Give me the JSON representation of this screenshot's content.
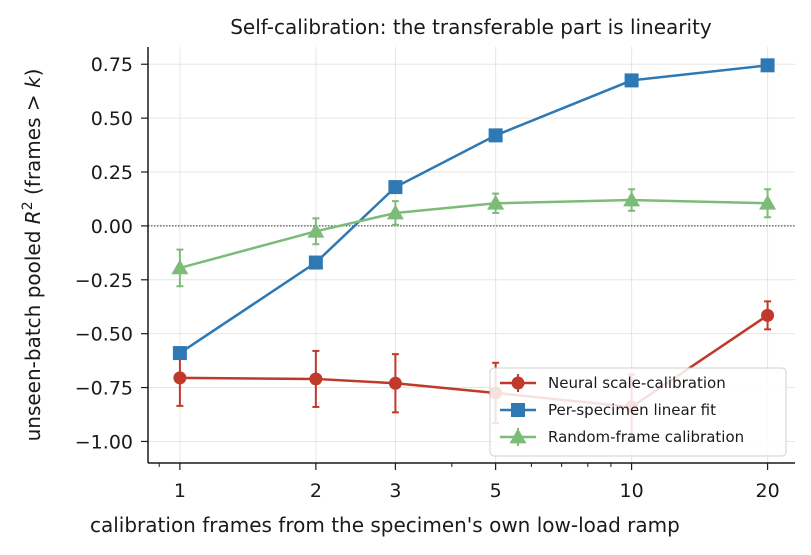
{
  "chart_data": {
    "type": "line",
    "title": "Self-calibration: the transferable part is linearity",
    "xlabel": "calibration frames from the specimen's own low-load ramp",
    "ylabel_prefix": "unseen-batch pooled ",
    "ylabel_math": "R",
    "ylabel_sup": "2",
    "ylabel_suffix": " (frames > ",
    "ylabel_k": "k",
    "ylabel_close": ")",
    "x_scale": "log",
    "x": [
      1,
      2,
      3,
      5,
      10,
      20
    ],
    "x_tick_labels": [
      "1",
      "2",
      "3",
      "5",
      "10",
      "20"
    ],
    "xlim": [
      0.85,
      23
    ],
    "ylim": [
      -1.1,
      0.83
    ],
    "y_ticks": [
      0.75,
      0.5,
      0.25,
      0.0,
      -0.25,
      -0.5,
      -0.75,
      -1.0
    ],
    "y_tick_labels": [
      "0.75",
      "0.50",
      "0.25",
      "0.00",
      "−0.25",
      "−0.50",
      "−0.75",
      "−1.00"
    ],
    "grid": true,
    "reference_line_y": 0,
    "legend_position": "lower-right",
    "series": [
      {
        "name": "Neural scale-calibration",
        "color": "#c0392b",
        "marker": "circle",
        "values": [
          -0.705,
          -0.71,
          -0.73,
          -0.775,
          -0.84,
          -0.415
        ],
        "error": [
          0.13,
          0.13,
          0.135,
          0.14,
          0.15,
          0.065
        ]
      },
      {
        "name": "Per-specimen linear fit",
        "color": "#2e78b3",
        "marker": "square",
        "values": [
          -0.59,
          -0.17,
          0.18,
          0.42,
          0.675,
          0.745
        ],
        "error": [
          0,
          0,
          0,
          0,
          0,
          0
        ]
      },
      {
        "name": "Random-frame calibration",
        "color": "#7dbb78",
        "marker": "triangle",
        "values": [
          -0.195,
          -0.025,
          0.06,
          0.105,
          0.12,
          0.105
        ],
        "error": [
          0.085,
          0.06,
          0.055,
          0.045,
          0.05,
          0.065
        ]
      }
    ]
  }
}
